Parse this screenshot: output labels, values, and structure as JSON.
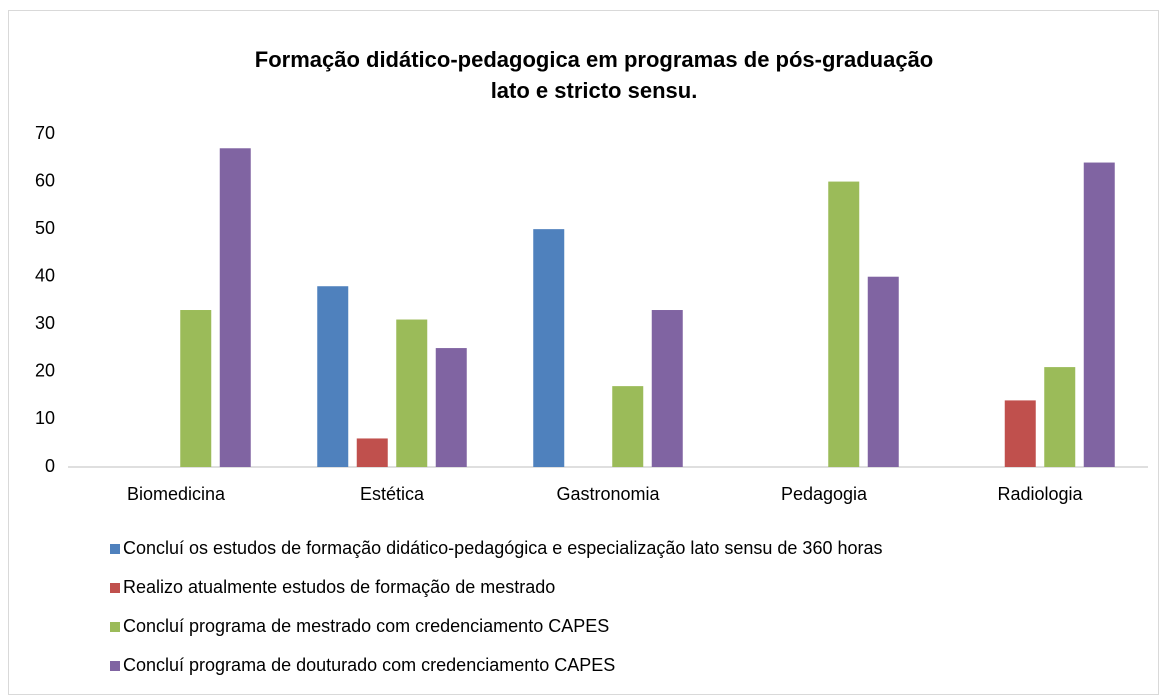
{
  "chart_data": {
    "type": "bar",
    "title": [
      "Formação didático-pedagogica em programas de pós-graduação",
      "lato e stricto sensu."
    ],
    "categories": [
      "Biomedicina",
      "Estética",
      "Gastronomia",
      "Pedagogia",
      "Radiologia"
    ],
    "series": [
      {
        "name": "Concluí os estudos de formação didático-pedagógica e especialização lato sensu de 360 horas",
        "color": "#4f81bd",
        "values": [
          0,
          38,
          50,
          0,
          0
        ]
      },
      {
        "name": "Realizo atualmente estudos de formação de mestrado",
        "color": "#c0504d",
        "values": [
          0,
          6,
          0,
          0,
          14
        ]
      },
      {
        "name": "Concluí programa de mestrado com credenciamento CAPES",
        "color": "#9bbb59",
        "values": [
          33,
          31,
          17,
          60,
          21
        ]
      },
      {
        "name": "Concluí programa de douturado com credenciamento CAPES",
        "color": "#8064a2",
        "values": [
          67,
          25,
          33,
          40,
          64
        ]
      }
    ],
    "ylim": [
      0,
      70
    ],
    "yticks": [
      0,
      10,
      20,
      30,
      40,
      50,
      60,
      70
    ],
    "grid": false,
    "legend": "bottom"
  }
}
